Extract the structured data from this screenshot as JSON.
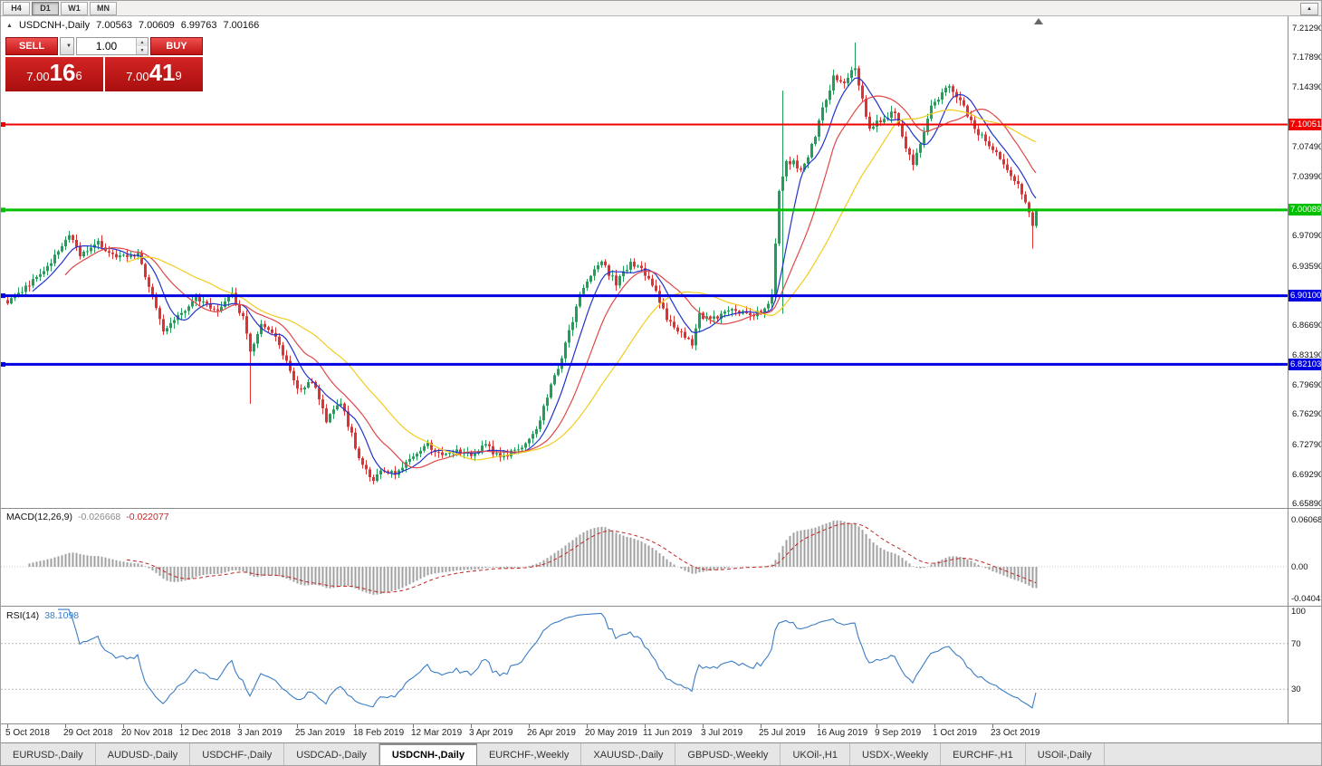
{
  "toolbar": {
    "timeframes": [
      "H4",
      "D1",
      "W1",
      "MN"
    ],
    "active_timeframe": "D1",
    "scroll_up_icon": "▲"
  },
  "chart": {
    "title": {
      "symbol": "USDCNH-,Daily",
      "open": "7.00563",
      "high": "7.00609",
      "low": "6.99763",
      "close": "7.00166"
    }
  },
  "trade_panel": {
    "sell_label": "SELL",
    "buy_label": "BUY",
    "volume": "1.00",
    "sell_price": {
      "prefix": "7.00",
      "big": "16",
      "sup": "6"
    },
    "buy_price": {
      "prefix": "7.00",
      "big": "41",
      "sup": "9"
    }
  },
  "y_axis": {
    "ticks": [
      "7.21290",
      "7.17890",
      "7.14390",
      "7.07490",
      "7.03990",
      "6.97090",
      "6.93590",
      "6.86690",
      "6.83190",
      "6.79690",
      "6.76290",
      "6.72790",
      "6.69290",
      "6.65890"
    ]
  },
  "h_lines": [
    {
      "price": 7.10051,
      "label": "7.10051",
      "color": "#ee0000",
      "width": 2
    },
    {
      "price": 7.00089,
      "label": "7.00089",
      "color": "#00c000",
      "width": 3
    },
    {
      "price": 6.901,
      "label": "6.90100",
      "color": "#0000e0",
      "width": 3
    },
    {
      "price": 6.82103,
      "label": "6.82103",
      "color": "#0000e0",
      "width": 3
    }
  ],
  "macd": {
    "label": "MACD(12,26,9)",
    "value_main": "-0.026668",
    "value_signal": "-0.022077",
    "axis": [
      "0.060687",
      "0.00",
      "-0.040431"
    ]
  },
  "rsi": {
    "label": "RSI(14)",
    "value": "38.1098",
    "axis": [
      "100",
      "70",
      "30"
    ],
    "levels": [
      70,
      30
    ]
  },
  "x_axis": {
    "labels": [
      {
        "text": "5 Oct 2018",
        "index": 0
      },
      {
        "text": "29 Oct 2018",
        "index": 16
      },
      {
        "text": "20 Nov 2018",
        "index": 32
      },
      {
        "text": "12 Dec 2018",
        "index": 48
      },
      {
        "text": "3 Jan 2019",
        "index": 64
      },
      {
        "text": "25 Jan 2019",
        "index": 80
      },
      {
        "text": "18 Feb 2019",
        "index": 96
      },
      {
        "text": "12 Mar 2019",
        "index": 112
      },
      {
        "text": "3 Apr 2019",
        "index": 128
      },
      {
        "text": "26 Apr 2019",
        "index": 144
      },
      {
        "text": "20 May 2019",
        "index": 160
      },
      {
        "text": "11 Jun 2019",
        "index": 176
      },
      {
        "text": "3 Jul 2019",
        "index": 192
      },
      {
        "text": "25 Jul 2019",
        "index": 208
      },
      {
        "text": "16 Aug 2019",
        "index": 224
      },
      {
        "text": "9 Sep 2019",
        "index": 240
      },
      {
        "text": "1 Oct 2019",
        "index": 256
      },
      {
        "text": "23 Oct 2019",
        "index": 272
      }
    ]
  },
  "tabs": {
    "items": [
      "EURUSD-,Daily",
      "AUDUSD-,Daily",
      "USDCHF-,Daily",
      "USDCAD-,Daily",
      "USDCNH-,Daily",
      "EURCHF-,Weekly",
      "XAUUSD-,Daily",
      "GBPUSD-,Weekly",
      "UKOil-,H1",
      "USDX-,Weekly",
      "EURCHF-,H1",
      "USOil-,Daily"
    ],
    "active_index": 4
  },
  "chart_data": {
    "type": "candlestick",
    "symbol": "USDCNH",
    "timeframe": "Daily",
    "last_ohlc": {
      "open": 7.00563,
      "high": 7.00609,
      "low": 6.99763,
      "close": 7.00166
    },
    "n_candles": 285,
    "seed": 987654321,
    "noise": 0.0035,
    "wick": 0.006,
    "last_close": 7.00166,
    "y_range": {
      "top": 7.2129,
      "bottom": 6.6589
    },
    "colors": {
      "up": "#1fa05a",
      "down": "#e03232",
      "macd_hist": "#a0a0a0",
      "macd_signal": "#c22525",
      "rsi_line": "#3b7dc4"
    },
    "moving_averages": [
      {
        "period": 8,
        "color": "#2233cc"
      },
      {
        "period": 17,
        "color": "#e04848"
      },
      {
        "period": 34,
        "color": "#f2cc1f"
      }
    ],
    "price_keypoints": [
      [
        0,
        6.895
      ],
      [
        6,
        6.915
      ],
      [
        12,
        6.94
      ],
      [
        17,
        6.972
      ],
      [
        20,
        6.948
      ],
      [
        25,
        6.962
      ],
      [
        30,
        6.944
      ],
      [
        36,
        6.948
      ],
      [
        40,
        6.9
      ],
      [
        43,
        6.856
      ],
      [
        47,
        6.88
      ],
      [
        52,
        6.896
      ],
      [
        58,
        6.886
      ],
      [
        62,
        6.902
      ],
      [
        65,
        6.875
      ],
      [
        67,
        6.835
      ],
      [
        70,
        6.868
      ],
      [
        74,
        6.852
      ],
      [
        80,
        6.792
      ],
      [
        84,
        6.802
      ],
      [
        88,
        6.756
      ],
      [
        92,
        6.778
      ],
      [
        97,
        6.712
      ],
      [
        101,
        6.682
      ],
      [
        103,
        6.7
      ],
      [
        107,
        6.692
      ],
      [
        112,
        6.712
      ],
      [
        116,
        6.728
      ],
      [
        120,
        6.712
      ],
      [
        124,
        6.722
      ],
      [
        128,
        6.714
      ],
      [
        132,
        6.728
      ],
      [
        136,
        6.71
      ],
      [
        140,
        6.72
      ],
      [
        144,
        6.732
      ],
      [
        147,
        6.755
      ],
      [
        150,
        6.8
      ],
      [
        152,
        6.815
      ],
      [
        155,
        6.86
      ],
      [
        158,
        6.9
      ],
      [
        161,
        6.925
      ],
      [
        164,
        6.94
      ],
      [
        168,
        6.915
      ],
      [
        172,
        6.938
      ],
      [
        175,
        6.93
      ],
      [
        179,
        6.905
      ],
      [
        182,
        6.875
      ],
      [
        186,
        6.858
      ],
      [
        189,
        6.845
      ],
      [
        191,
        6.878
      ],
      [
        195,
        6.875
      ],
      [
        200,
        6.882
      ],
      [
        205,
        6.878
      ],
      [
        209,
        6.885
      ],
      [
        211,
        6.9
      ],
      [
        213,
        7.02
      ],
      [
        215,
        7.055
      ],
      [
        217,
        7.06
      ],
      [
        219,
        7.045
      ],
      [
        221,
        7.065
      ],
      [
        223,
        7.085
      ],
      [
        225,
        7.12
      ],
      [
        228,
        7.155
      ],
      [
        231,
        7.148
      ],
      [
        234,
        7.168
      ],
      [
        236,
        7.13
      ],
      [
        238,
        7.095
      ],
      [
        241,
        7.105
      ],
      [
        245,
        7.115
      ],
      [
        248,
        7.075
      ],
      [
        250,
        7.05
      ],
      [
        252,
        7.08
      ],
      [
        255,
        7.12
      ],
      [
        258,
        7.135
      ],
      [
        260,
        7.148
      ],
      [
        262,
        7.135
      ],
      [
        265,
        7.112
      ],
      [
        268,
        7.09
      ],
      [
        272,
        7.072
      ],
      [
        276,
        7.05
      ],
      [
        280,
        7.022
      ],
      [
        282,
        6.995
      ],
      [
        283,
        6.982
      ],
      [
        284,
        7.00166
      ]
    ],
    "overrides": [
      {
        "i": 67,
        "low": 6.775
      },
      {
        "i": 214,
        "high": 7.14,
        "low": 6.88
      },
      {
        "i": 234,
        "high": 7.196
      },
      {
        "i": 283,
        "low": 6.956
      }
    ],
    "indicators": [
      {
        "name": "MACD",
        "params": [
          12,
          26,
          9
        ],
        "values": [
          -0.026668,
          -0.022077
        ],
        "axis_range": [
          -0.040431,
          0.060687
        ]
      },
      {
        "name": "RSI",
        "params": [
          14
        ],
        "value": 38.1098,
        "levels": [
          30,
          70
        ],
        "axis_range": [
          0,
          100
        ]
      }
    ],
    "levels": [
      {
        "price": 7.10051,
        "color": "red"
      },
      {
        "price": 7.00089,
        "color": "green"
      },
      {
        "price": 6.901,
        "color": "blue"
      },
      {
        "price": 6.82103,
        "color": "blue"
      }
    ]
  }
}
